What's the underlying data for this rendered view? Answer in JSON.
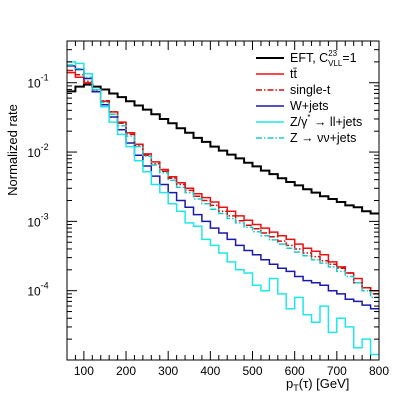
{
  "chart_data": {
    "type": "line",
    "title": "",
    "xlabel": "p_T(τ) [GeV]",
    "xlabel_parts": {
      "main": "p",
      "sub": "T",
      "rest": "(τ) [GeV]"
    },
    "ylabel": "Normalized rate",
    "xlim": [
      60,
      800
    ],
    "ylim": [
      1e-05,
      0.4
    ],
    "yscale": "log",
    "xticks": [
      100,
      200,
      300,
      400,
      500,
      600,
      700,
      800
    ],
    "xtick_labels": [
      "100",
      "200",
      "300",
      "400",
      "500",
      "600",
      "700",
      "800"
    ],
    "yticks": [
      0.0001,
      0.001,
      0.01,
      0.1
    ],
    "ytick_labels": [
      {
        "base": "10",
        "exp": "-4"
      },
      {
        "base": "10",
        "exp": "-3"
      },
      {
        "base": "10",
        "exp": "-2"
      },
      {
        "base": "10",
        "exp": "-1"
      }
    ],
    "grid": false,
    "legend_position": "top-right",
    "bin_edges": [
      60,
      80,
      100,
      120,
      140,
      160,
      180,
      200,
      220,
      240,
      260,
      280,
      300,
      320,
      340,
      360,
      380,
      400,
      420,
      440,
      460,
      480,
      500,
      520,
      540,
      560,
      580,
      600,
      620,
      640,
      660,
      680,
      700,
      720,
      740,
      760,
      780,
      800
    ],
    "series": [
      {
        "name": "EFT, C_VLL^23=1",
        "legend": {
          "main": "EFT, C",
          "sup": "23",
          "sub": "VLL",
          "rest": "=1"
        },
        "color": "#000000",
        "dash": "",
        "width": 2.0,
        "values": [
          0.075,
          0.088,
          0.094,
          0.088,
          0.08,
          0.07,
          0.062,
          0.054,
          0.047,
          0.041,
          0.035,
          0.03,
          0.026,
          0.022,
          0.019,
          0.016,
          0.014,
          0.012,
          0.0105,
          0.0092,
          0.0081,
          0.007,
          0.0062,
          0.0054,
          0.0048,
          0.0042,
          0.0037,
          0.0033,
          0.0029,
          0.0026,
          0.0023,
          0.0021,
          0.0019,
          0.0017,
          0.0016,
          0.0014,
          0.0013
        ]
      },
      {
        "name": "tt̄",
        "legend": {
          "main": "tt̄"
        },
        "color": "#ee1111",
        "dash": "",
        "width": 1.5,
        "values": [
          0.14,
          0.12,
          0.1,
          0.074,
          0.054,
          0.038,
          0.027,
          0.019,
          0.013,
          0.0094,
          0.0072,
          0.0056,
          0.0044,
          0.0036,
          0.003,
          0.0025,
          0.0022,
          0.0019,
          0.0016,
          0.0014,
          0.0012,
          0.00104,
          0.0009,
          0.0008,
          0.0007,
          0.00062,
          0.00055,
          0.00047,
          0.00041,
          0.00037,
          0.00033,
          0.00026,
          0.00022,
          0.00018,
          0.00015,
          0.00011,
          0.0001
        ]
      },
      {
        "name": "single-t",
        "legend": {
          "main": "single-t"
        },
        "color": "#cc1111",
        "dash": "6,2,1.5,2",
        "width": 1.5,
        "values": [
          0.15,
          0.13,
          0.105,
          0.075,
          0.055,
          0.038,
          0.026,
          0.018,
          0.0125,
          0.009,
          0.0068,
          0.0053,
          0.0042,
          0.0034,
          0.0028,
          0.0023,
          0.002,
          0.0017,
          0.0014,
          0.0012,
          0.00102,
          0.00088,
          0.00078,
          0.00068,
          0.0006,
          0.00052,
          0.00045,
          0.0004,
          0.00035,
          0.00031,
          0.00027,
          0.00024,
          0.00021,
          0.00018,
          0.00013,
          0.00011,
          9e-05
        ]
      },
      {
        "name": "W+jets",
        "legend": {
          "main": "W+jets"
        },
        "color": "#1a1aaa",
        "dash": "",
        "width": 1.5,
        "values": [
          0.175,
          0.155,
          0.115,
          0.074,
          0.048,
          0.032,
          0.021,
          0.0135,
          0.009,
          0.0063,
          0.0045,
          0.0034,
          0.0026,
          0.002,
          0.0016,
          0.00125,
          0.001,
          0.0008,
          0.00068,
          0.00055,
          0.00045,
          0.00038,
          0.00033,
          0.00028,
          0.00024,
          0.00021,
          0.00019,
          0.00016,
          0.00014,
          0.00013,
          0.00012,
          0.0001,
          9e-05,
          7.5e-05,
          7e-05,
          6.2e-05,
          5.5e-05
        ]
      },
      {
        "name": "Z/γ* → ll+jets",
        "legend": {
          "main": "Z/γ",
          "sup": "*",
          "rest": " → ll+jets"
        },
        "color": "#22e6e6",
        "dash": "",
        "width": 1.5,
        "values": [
          0.2,
          0.19,
          0.135,
          0.08,
          0.045,
          0.027,
          0.018,
          0.012,
          0.0075,
          0.0052,
          0.0034,
          0.0026,
          0.0018,
          0.0014,
          0.00095,
          0.00085,
          0.00055,
          0.00045,
          0.00035,
          0.00026,
          0.0002,
          0.00018,
          0.00012,
          0.0001,
          0.00015,
          9e-05,
          5.5e-05,
          8e-05,
          4.5e-05,
          3.5e-05,
          6e-05,
          2.5e-05,
          4e-05,
          3e-05,
          1.5e-05,
          2e-05,
          1.2e-05
        ]
      },
      {
        "name": "Z → νν+jets",
        "legend": {
          "main": "Z → νν+jets"
        },
        "color": "#22c8c8",
        "dash": "6,2,1.5,2",
        "width": 1.5,
        "values": [
          0.18,
          0.16,
          0.12,
          0.079,
          0.052,
          0.035,
          0.024,
          0.017,
          0.012,
          0.0087,
          0.0065,
          0.005,
          0.0039,
          0.0031,
          0.0026,
          0.0021,
          0.0018,
          0.0015,
          0.0013,
          0.0011,
          0.00095,
          0.00082,
          0.00071,
          0.00062,
          0.00054,
          0.00047,
          0.00041,
          0.00036,
          0.00032,
          0.00028,
          0.00025,
          0.00022,
          0.00019,
          0.00016,
          0.00013,
          0.0001,
          8e-05
        ]
      }
    ]
  }
}
